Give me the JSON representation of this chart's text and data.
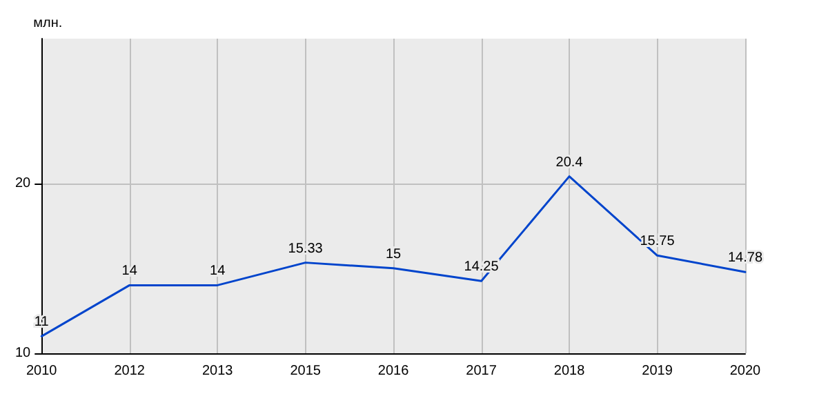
{
  "chart_data": {
    "type": "line",
    "ylabel": "млн.",
    "categories": [
      "2010",
      "2012",
      "2013",
      "2015",
      "2016",
      "2017",
      "2018",
      "2019",
      "2020"
    ],
    "series": [
      {
        "color": "#0044cc",
        "values": [
          11,
          14,
          14,
          15.33,
          15,
          14.25,
          20.4,
          15.75,
          14.78
        ]
      }
    ],
    "ylim": [
      10,
      28.5
    ],
    "yticks": [
      10,
      20
    ],
    "grid": true,
    "data_labels": true,
    "marker": "none",
    "line_style": "solid"
  }
}
